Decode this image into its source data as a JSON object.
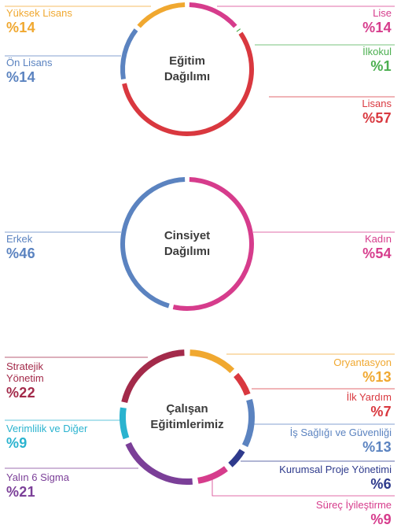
{
  "chart_data": [
    {
      "type": "pie",
      "title_lines": [
        "Eğitim",
        "Dağılımı"
      ],
      "slices": [
        {
          "name": "Lise",
          "value_label": "%14",
          "value": 14,
          "color": "#d63c8c"
        },
        {
          "name": "İlkokul",
          "value_label": "%1",
          "value": 1,
          "color": "#4caf50"
        },
        {
          "name": "Lisans",
          "value_label": "%57",
          "value": 57,
          "color": "#d9383f"
        },
        {
          "name": "Ön Lisans",
          "value_label": "%14",
          "value": 14,
          "color": "#5b83c0"
        },
        {
          "name": "Yüksek Lisans",
          "value_label": "%14",
          "value": 14,
          "color": "#f0a830"
        }
      ]
    },
    {
      "type": "pie",
      "title_lines": [
        "Cinsiyet",
        "Dağılımı"
      ],
      "slices": [
        {
          "name": "Kadın",
          "value_label": "%54",
          "value": 54,
          "color": "#d63c8c"
        },
        {
          "name": "Erkek",
          "value_label": "%46",
          "value": 46,
          "color": "#5b83c0"
        }
      ]
    },
    {
      "type": "pie",
      "title_lines": [
        "Çalışan",
        "Eğitimlerimiz"
      ],
      "slices": [
        {
          "name": "Oryantasyon",
          "value_label": "%13",
          "value": 13,
          "color": "#f0a830"
        },
        {
          "name": "İlk Yardım",
          "value_label": "%7",
          "value": 7,
          "color": "#d9383f"
        },
        {
          "name": "İş Sağlığı ve Güvenliği",
          "value_label": "%13",
          "value": 13,
          "color": "#5b83c0"
        },
        {
          "name": "Kurumsal Proje Yönetimi",
          "value_label": "%6",
          "value": 6,
          "color": "#2e3a8c"
        },
        {
          "name": "Süreç İyileştirme",
          "value_label": "%9",
          "value": 9,
          "color": "#d63c8c"
        },
        {
          "name": "Yalın 6 Sigma",
          "value_label": "%21",
          "value": 21,
          "color": "#7b3f98"
        },
        {
          "name": "Verimlilik ve Diğer",
          "value_label": "%9",
          "value": 9,
          "color": "#2ab3cf"
        },
        {
          "name": "Stratejik Yönetim",
          "value_label": "%22",
          "value": 22,
          "color": "#a32a4a"
        }
      ]
    }
  ]
}
